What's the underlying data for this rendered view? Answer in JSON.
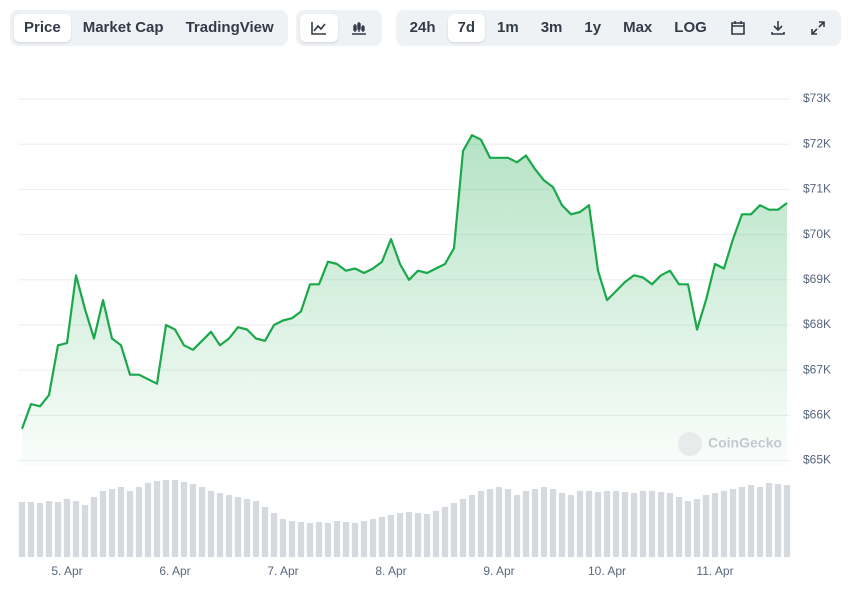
{
  "toolbar": {
    "views": [
      {
        "label": "Price",
        "selected": true
      },
      {
        "label": "Market Cap",
        "selected": false
      },
      {
        "label": "TradingView",
        "selected": false
      }
    ],
    "ranges": [
      {
        "label": "24h",
        "selected": false
      },
      {
        "label": "7d",
        "selected": true
      },
      {
        "label": "1m",
        "selected": false
      },
      {
        "label": "3m",
        "selected": false
      },
      {
        "label": "1y",
        "selected": false
      },
      {
        "label": "Max",
        "selected": false
      },
      {
        "label": "LOG",
        "selected": false
      }
    ]
  },
  "watermark": "CoinGecko",
  "chart_data": [
    {
      "type": "area",
      "color": "#1aa84a",
      "grid": true,
      "categories": [
        null,
        null,
        null,
        null,
        null,
        "5. Apr",
        null,
        null,
        null,
        null,
        null,
        null,
        null,
        null,
        null,
        null,
        null,
        "6. Apr",
        null,
        null,
        null,
        null,
        null,
        null,
        null,
        null,
        null,
        null,
        null,
        "7. Apr",
        null,
        null,
        null,
        null,
        null,
        null,
        null,
        null,
        null,
        null,
        null,
        "8. Apr",
        null,
        null,
        null,
        null,
        null,
        null,
        null,
        null,
        null,
        null,
        null,
        "9. Apr",
        null,
        null,
        null,
        null,
        null,
        null,
        null,
        null,
        null,
        null,
        null,
        "10. Apr",
        null,
        null,
        null,
        null,
        null,
        null,
        null,
        null,
        null,
        null,
        null,
        "11. Apr",
        null,
        null,
        null,
        null,
        null,
        null,
        null,
        null
      ],
      "values": [
        65700,
        66250,
        66200,
        66450,
        67550,
        67600,
        69100,
        68350,
        67700,
        68550,
        67700,
        67550,
        66900,
        66900,
        66800,
        66700,
        68000,
        67900,
        67550,
        67450,
        67650,
        67850,
        67550,
        67700,
        67950,
        67900,
        67700,
        67650,
        68000,
        68100,
        68150,
        68300,
        68900,
        68900,
        69400,
        69350,
        69200,
        69250,
        69150,
        69250,
        69400,
        69900,
        69350,
        69000,
        69200,
        69150,
        69250,
        69350,
        69700,
        71850,
        72200,
        72100,
        71700,
        71700,
        71700,
        71600,
        71750,
        71450,
        71200,
        71050,
        70650,
        70450,
        70500,
        70650,
        69200,
        68550,
        68750,
        68950,
        69100,
        69050,
        68900,
        69100,
        69200,
        68900,
        68900,
        67900,
        68550,
        69350,
        69250,
        69900,
        70450,
        70450,
        70650,
        70550,
        70550,
        70700
      ],
      "ylim": [
        64880,
        73000
      ],
      "yticks": [
        {
          "value": 65000,
          "label": "$65K"
        },
        {
          "value": 66000,
          "label": "$66K"
        },
        {
          "value": 67000,
          "label": "$67K"
        },
        {
          "value": 68000,
          "label": "$68K"
        },
        {
          "value": 69000,
          "label": "$69K"
        },
        {
          "value": 70000,
          "label": "$70K"
        },
        {
          "value": 71000,
          "label": "$71K"
        },
        {
          "value": 72000,
          "label": "$72K"
        },
        {
          "value": 73000,
          "label": "$73K"
        }
      ]
    },
    {
      "type": "bar",
      "color": "#d6dade",
      "values": [
        55,
        55,
        54,
        56,
        55,
        58,
        56,
        52,
        60,
        66,
        68,
        70,
        66,
        70,
        74,
        76,
        77,
        77,
        75,
        73,
        70,
        66,
        64,
        62,
        60,
        58,
        56,
        50,
        44,
        38,
        36,
        35,
        34,
        35,
        34,
        36,
        35,
        34,
        36,
        38,
        40,
        42,
        44,
        45,
        44,
        43,
        46,
        50,
        54,
        58,
        62,
        66,
        68,
        70,
        68,
        62,
        66,
        68,
        70,
        68,
        64,
        62,
        66,
        66,
        65,
        66,
        66,
        65,
        64,
        66,
        66,
        65,
        64,
        60,
        56,
        58,
        62,
        64,
        66,
        68,
        70,
        72,
        70,
        74,
        73,
        72
      ],
      "ylim": [
        0,
        80
      ]
    }
  ]
}
